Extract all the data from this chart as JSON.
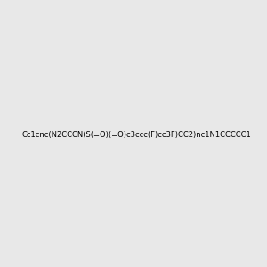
{
  "smiles": "Cc1cnc(N2CCCN(S(=O)(=O)c3ccc(F)cc3F)CC2)nc1N1CCCCC1",
  "title": "",
  "bg_color": "#e8e8e8",
  "fig_width": 3.0,
  "fig_height": 3.0,
  "dpi": 100
}
